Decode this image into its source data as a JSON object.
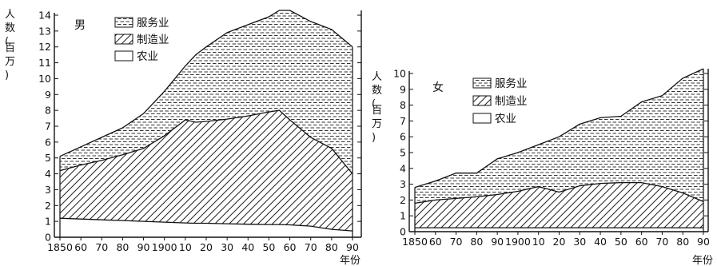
{
  "chart_data": [
    {
      "type": "area",
      "title": "男",
      "ylabel": "人数(百万)",
      "xlabel": "年份",
      "stacked": true,
      "ylim": [
        0,
        14
      ],
      "xlim": [
        1850,
        1990
      ],
      "y_ticks": [
        "0",
        "1",
        "2",
        "3",
        "4",
        "5",
        "6",
        "7",
        "8",
        "9",
        "10",
        "11",
        "12",
        "13",
        "14"
      ],
      "x_ticks": [
        "1850",
        "60",
        "70",
        "80",
        "90",
        "1900",
        "10",
        "20",
        "30",
        "40",
        "50",
        "60",
        "70",
        "80",
        "90"
      ],
      "legend": [
        "服务业",
        "制造业",
        "农业"
      ],
      "x": [
        1850,
        1860,
        1870,
        1880,
        1890,
        1900,
        1910,
        1915,
        1920,
        1930,
        1940,
        1950,
        1955,
        1960,
        1970,
        1980,
        1990
      ],
      "series": [
        {
          "name": "农业",
          "values": [
            1.2,
            1.15,
            1.1,
            1.05,
            1.0,
            0.95,
            0.9,
            0.88,
            0.88,
            0.85,
            0.82,
            0.8,
            0.8,
            0.78,
            0.7,
            0.5,
            0.4
          ]
        },
        {
          "name": "制造业",
          "values": [
            4.2,
            4.55,
            4.85,
            5.2,
            5.6,
            6.4,
            7.4,
            7.25,
            7.3,
            7.45,
            7.65,
            7.9,
            8.0,
            7.4,
            6.3,
            5.6,
            4.0
          ]
        },
        {
          "name": "服务业",
          "values": [
            5.1,
            5.7,
            6.3,
            6.9,
            7.8,
            9.2,
            10.8,
            11.5,
            12.0,
            12.9,
            13.4,
            13.9,
            14.3,
            14.3,
            13.6,
            13.1,
            12.0
          ]
        }
      ]
    },
    {
      "type": "area",
      "title": "女",
      "ylabel": "人数(百万)",
      "xlabel": "年份",
      "stacked": true,
      "ylim": [
        0,
        10
      ],
      "xlim": [
        1850,
        1990
      ],
      "y_ticks": [
        "0",
        "1",
        "2",
        "3",
        "4",
        "5",
        "6",
        "7",
        "8",
        "9",
        "10"
      ],
      "x_ticks": [
        "1850",
        "60",
        "70",
        "80",
        "90",
        "1900",
        "10",
        "20",
        "30",
        "40",
        "50",
        "60",
        "70",
        "80",
        "90"
      ],
      "legend": [
        "服务业",
        "制造业",
        "农业"
      ],
      "x": [
        1850,
        1860,
        1870,
        1880,
        1890,
        1900,
        1910,
        1920,
        1930,
        1940,
        1950,
        1960,
        1970,
        1980,
        1990
      ],
      "series": [
        {
          "name": "农业",
          "values": [
            0.25,
            0.25,
            0.25,
            0.25,
            0.25,
            0.25,
            0.25,
            0.25,
            0.25,
            0.25,
            0.25,
            0.25,
            0.25,
            0.25,
            0.25
          ]
        },
        {
          "name": "制造业",
          "values": [
            1.8,
            2.0,
            2.1,
            2.2,
            2.35,
            2.55,
            2.85,
            2.5,
            2.9,
            3.05,
            3.1,
            3.1,
            2.85,
            2.45,
            1.9
          ]
        },
        {
          "name": "服务业",
          "values": [
            2.8,
            3.2,
            3.7,
            3.7,
            4.6,
            5.0,
            5.5,
            6.0,
            6.8,
            7.2,
            7.3,
            8.2,
            8.6,
            9.7,
            10.3
          ]
        }
      ]
    }
  ]
}
